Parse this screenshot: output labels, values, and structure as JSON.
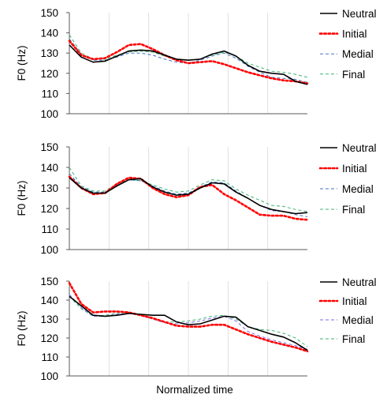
{
  "figure": {
    "xlabel": "Normalized time"
  },
  "chart_data": [
    {
      "type": "line",
      "ylabel": "F0 (Hz)",
      "ylim": [
        100,
        150
      ],
      "yticks": [
        100,
        110,
        120,
        130,
        140,
        150
      ],
      "xlim": [
        0,
        1
      ],
      "grid": "vertical",
      "legend_placement": "right",
      "series": [
        {
          "name": "Neutral",
          "color": "#000000",
          "style": "solid",
          "x": [
            0,
            0.05,
            0.1,
            0.15,
            0.2,
            0.25,
            0.3,
            0.35,
            0.4,
            0.45,
            0.5,
            0.55,
            0.6,
            0.65,
            0.7,
            0.75,
            0.8,
            0.85,
            0.9,
            0.95,
            1.0
          ],
          "values": [
            134,
            128,
            125.5,
            126,
            128.5,
            131,
            131.5,
            131,
            129,
            127,
            126.5,
            127,
            129.5,
            131,
            128.5,
            124,
            121,
            120,
            119.5,
            116,
            114.5
          ]
        },
        {
          "name": "Initial",
          "color": "#ff0000",
          "style": "dotted",
          "x": [
            0,
            0.05,
            0.1,
            0.15,
            0.2,
            0.25,
            0.3,
            0.35,
            0.4,
            0.45,
            0.5,
            0.55,
            0.6,
            0.65,
            0.7,
            0.75,
            0.8,
            0.85,
            0.9,
            0.95,
            1.0
          ],
          "values": [
            136,
            129,
            127,
            127.5,
            130.5,
            134,
            134.5,
            132,
            129,
            126.5,
            125,
            125.5,
            126,
            124.5,
            122.5,
            120.5,
            119,
            117.5,
            116.5,
            116,
            115
          ]
        },
        {
          "name": "Medial",
          "color": "#4472c4",
          "style": "dashed",
          "x": [
            0,
            0.05,
            0.1,
            0.15,
            0.2,
            0.25,
            0.3,
            0.35,
            0.4,
            0.45,
            0.5,
            0.55,
            0.6,
            0.65,
            0.7,
            0.75,
            0.8,
            0.85,
            0.9,
            0.95,
            1.0
          ],
          "values": [
            137,
            129.5,
            126.5,
            126.5,
            128,
            130,
            130,
            129,
            127,
            125.5,
            125,
            126.5,
            128.5,
            130,
            127.5,
            123.5,
            120.5,
            118,
            117.5,
            117,
            115.5
          ]
        },
        {
          "name": "Final",
          "color": "#3cb371",
          "style": "dashed",
          "x": [
            0,
            0.05,
            0.1,
            0.15,
            0.2,
            0.25,
            0.3,
            0.35,
            0.4,
            0.45,
            0.5,
            0.55,
            0.6,
            0.65,
            0.7,
            0.75,
            0.8,
            0.85,
            0.9,
            0.95,
            1.0
          ],
          "values": [
            139,
            130,
            127,
            127,
            129,
            130.5,
            131,
            130.5,
            128.5,
            127,
            126.5,
            127,
            129,
            130.5,
            128.5,
            125,
            123,
            121,
            120.5,
            119.5,
            118
          ]
        }
      ]
    },
    {
      "type": "line",
      "ylabel": "F0 (Hz)",
      "ylim": [
        100,
        150
      ],
      "yticks": [
        100,
        110,
        120,
        130,
        140,
        150
      ],
      "xlim": [
        0,
        1
      ],
      "grid": "vertical",
      "legend_placement": "right",
      "series": [
        {
          "name": "Neutral",
          "color": "#000000",
          "style": "solid",
          "x": [
            0,
            0.05,
            0.1,
            0.15,
            0.2,
            0.25,
            0.3,
            0.35,
            0.4,
            0.45,
            0.5,
            0.55,
            0.6,
            0.65,
            0.7,
            0.75,
            0.8,
            0.85,
            0.9,
            0.95,
            1.0
          ],
          "values": [
            135,
            130,
            127.5,
            127.5,
            131,
            134,
            134.5,
            130.5,
            128,
            126.5,
            127,
            130,
            132.5,
            132,
            128,
            125,
            121.5,
            119.5,
            118.5,
            117.5,
            118
          ]
        },
        {
          "name": "Initial",
          "color": "#ff0000",
          "style": "dotted",
          "x": [
            0,
            0.05,
            0.1,
            0.15,
            0.2,
            0.25,
            0.3,
            0.35,
            0.4,
            0.45,
            0.5,
            0.55,
            0.6,
            0.65,
            0.7,
            0.75,
            0.8,
            0.85,
            0.9,
            0.95,
            1.0
          ],
          "values": [
            135.5,
            130,
            127,
            127.5,
            132,
            135,
            134.5,
            130,
            127,
            125.5,
            126.5,
            130.5,
            131.5,
            127,
            124,
            120.5,
            117,
            116.5,
            116.5,
            115,
            114.5
          ]
        },
        {
          "name": "Medial",
          "color": "#4472c4",
          "style": "dashed",
          "x": [
            0,
            0.05,
            0.1,
            0.15,
            0.2,
            0.25,
            0.3,
            0.35,
            0.4,
            0.45,
            0.5,
            0.55,
            0.6,
            0.65,
            0.7,
            0.75,
            0.8,
            0.85,
            0.9,
            0.95,
            1.0
          ],
          "values": [
            137,
            130.5,
            128,
            128,
            131.5,
            134,
            133.5,
            131,
            128.5,
            127,
            127.5,
            130.5,
            133,
            132.5,
            128.5,
            125,
            121.5,
            119,
            118.5,
            117,
            116
          ]
        },
        {
          "name": "Final",
          "color": "#3cb371",
          "style": "dashed",
          "x": [
            0,
            0.05,
            0.1,
            0.15,
            0.2,
            0.25,
            0.3,
            0.35,
            0.4,
            0.45,
            0.5,
            0.55,
            0.6,
            0.65,
            0.7,
            0.75,
            0.8,
            0.85,
            0.9,
            0.95,
            1.0
          ],
          "values": [
            140,
            131,
            128.5,
            128.5,
            132,
            134,
            133.5,
            131.5,
            129.5,
            128,
            128.5,
            131.5,
            134,
            133.5,
            129.5,
            126.5,
            124,
            121.5,
            121,
            119.5,
            118.5
          ]
        }
      ]
    },
    {
      "type": "line",
      "ylabel": "F0 (Hz)",
      "ylim": [
        100,
        150
      ],
      "yticks": [
        100,
        110,
        120,
        130,
        140,
        150
      ],
      "xlim": [
        0,
        1
      ],
      "grid": "vertical",
      "legend_placement": "right",
      "series": [
        {
          "name": "Neutral",
          "color": "#000000",
          "style": "solid",
          "x": [
            0,
            0.05,
            0.1,
            0.15,
            0.2,
            0.25,
            0.3,
            0.35,
            0.4,
            0.45,
            0.5,
            0.55,
            0.6,
            0.65,
            0.7,
            0.75,
            0.8,
            0.85,
            0.9,
            0.95,
            1.0
          ],
          "values": [
            142,
            137,
            132,
            131.5,
            132,
            133,
            132.5,
            132,
            132,
            128.5,
            127,
            127.5,
            129.5,
            131.5,
            131,
            126,
            124,
            122,
            120.5,
            117.5,
            113.5
          ]
        },
        {
          "name": "Initial",
          "color": "#ff0000",
          "style": "dotted",
          "x": [
            0,
            0.05,
            0.1,
            0.15,
            0.2,
            0.25,
            0.3,
            0.35,
            0.4,
            0.45,
            0.5,
            0.55,
            0.6,
            0.65,
            0.7,
            0.75,
            0.8,
            0.85,
            0.9,
            0.95,
            1.0
          ],
          "values": [
            149,
            138,
            133.5,
            134,
            134,
            133.5,
            132,
            130.5,
            128.5,
            126.5,
            126,
            126,
            127,
            127,
            124.5,
            122,
            120,
            118,
            116.5,
            115,
            113
          ]
        },
        {
          "name": "Medial",
          "color": "#7b68ee",
          "style": "dashed",
          "x": [
            0,
            0.05,
            0.1,
            0.15,
            0.2,
            0.25,
            0.3,
            0.35,
            0.4,
            0.45,
            0.5,
            0.55,
            0.6,
            0.65,
            0.7,
            0.75,
            0.8,
            0.85,
            0.9,
            0.95,
            1.0
          ],
          "values": [
            143,
            136,
            131.5,
            131.5,
            132.5,
            133,
            132,
            130,
            128,
            127.5,
            128,
            129,
            130.5,
            131.5,
            129,
            123.5,
            121,
            119,
            117.5,
            116,
            114
          ]
        },
        {
          "name": "Final",
          "color": "#3cb371",
          "style": "dashed",
          "x": [
            0,
            0.05,
            0.1,
            0.15,
            0.2,
            0.25,
            0.3,
            0.35,
            0.4,
            0.45,
            0.5,
            0.55,
            0.6,
            0.65,
            0.7,
            0.75,
            0.8,
            0.85,
            0.9,
            0.95,
            1.0
          ],
          "values": [
            142,
            135.5,
            131.5,
            132,
            133,
            133.5,
            132.5,
            130,
            128.5,
            128.5,
            129,
            130,
            131.5,
            132,
            130,
            126,
            124.5,
            124,
            122.5,
            120,
            115.5
          ]
        }
      ]
    }
  ]
}
